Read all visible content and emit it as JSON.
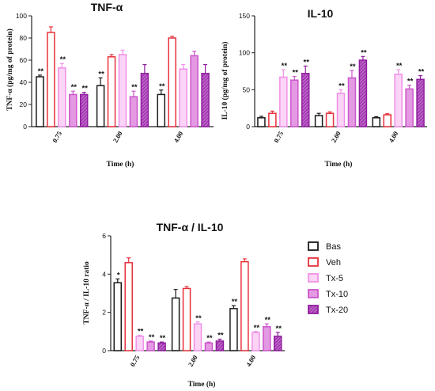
{
  "series_styles": [
    {
      "name": "Bas",
      "stroke": "#1a1a1a",
      "fill": "#ffffff",
      "hatch": false
    },
    {
      "name": "Veh",
      "stroke": "#e8303a",
      "fill": "#ffffff",
      "hatch": false
    },
    {
      "name": "Tx-5",
      "stroke": "#f090e8",
      "fill": "#fcd4f6",
      "hatch": false
    },
    {
      "name": "Tx-10",
      "stroke": "#cc55cc",
      "fill": "#e49ae2",
      "hatch": false
    },
    {
      "name": "Tx-20",
      "stroke": "#8f1d9e",
      "fill": "#c060cc",
      "hatch": true
    }
  ],
  "chart_data": [
    {
      "type": "bar",
      "title": "TNF-α",
      "xlabel": "Time (h)",
      "ylabel": "TNF-α (pg/mg of protein)",
      "categories": [
        "0.75",
        "2.00",
        "4.00"
      ],
      "ylim": [
        0,
        100
      ],
      "yticks": [
        0,
        20,
        40,
        60,
        80,
        100
      ],
      "series": [
        {
          "name": "Bas",
          "values": [
            45,
            37,
            29
          ],
          "errors": [
            1.5,
            7,
            4
          ],
          "sig": [
            "**",
            "**",
            "**"
          ]
        },
        {
          "name": "Veh",
          "values": [
            85,
            63,
            80
          ],
          "errors": [
            5,
            2,
            1.5
          ],
          "sig": [
            "",
            "",
            ""
          ]
        },
        {
          "name": "Tx-5",
          "values": [
            53,
            65,
            52
          ],
          "errors": [
            4,
            4,
            4
          ],
          "sig": [
            "**",
            "",
            ""
          ]
        },
        {
          "name": "Tx-10",
          "values": [
            29,
            27,
            64
          ],
          "errors": [
            3,
            5,
            4
          ],
          "sig": [
            "**",
            "**",
            ""
          ]
        },
        {
          "name": "Tx-20",
          "values": [
            29,
            48,
            48
          ],
          "errors": [
            2,
            8,
            8
          ],
          "sig": [
            "**",
            "",
            ""
          ]
        }
      ]
    },
    {
      "type": "bar",
      "title": "IL-10",
      "xlabel": "Time (h)",
      "ylabel": "IL-10 (pg/mg of protein)",
      "categories": [
        "0.75",
        "2.00",
        "4.00"
      ],
      "ylim": [
        0,
        150
      ],
      "yticks": [
        0,
        50,
        100,
        150
      ],
      "series": [
        {
          "name": "Bas",
          "values": [
            12,
            15,
            12
          ],
          "errors": [
            2,
            3,
            1.5
          ],
          "sig": [
            "",
            "",
            ""
          ]
        },
        {
          "name": "Veh",
          "values": [
            18,
            18,
            16
          ],
          "errors": [
            3,
            2,
            1.5
          ],
          "sig": [
            "",
            "",
            ""
          ]
        },
        {
          "name": "Tx-5",
          "values": [
            67,
            45,
            71
          ],
          "errors": [
            10,
            5,
            6
          ],
          "sig": [
            "**",
            "**",
            "**"
          ]
        },
        {
          "name": "Tx-10",
          "values": [
            63,
            66,
            51
          ],
          "errors": [
            5,
            10,
            5
          ],
          "sig": [
            "**",
            "**",
            "**"
          ]
        },
        {
          "name": "Tx-20",
          "values": [
            72,
            90,
            64
          ],
          "errors": [
            10,
            5,
            5
          ],
          "sig": [
            "**",
            "**",
            "**"
          ]
        }
      ]
    },
    {
      "type": "bar",
      "title": "TNF-α / IL-10",
      "xlabel": "Time (h)",
      "ylabel": "TNF-α / IL-10 ratio",
      "categories": [
        "0.75",
        "2.00",
        "4.00"
      ],
      "ylim": [
        0,
        6
      ],
      "yticks": [
        0,
        2,
        4,
        6
      ],
      "series": [
        {
          "name": "Bas",
          "values": [
            3.55,
            2.75,
            2.2
          ],
          "errors": [
            0.2,
            0.45,
            0.15
          ],
          "sig": [
            "*",
            "",
            "**"
          ]
        },
        {
          "name": "Veh",
          "values": [
            4.6,
            3.25,
            4.65
          ],
          "errors": [
            0.25,
            0.1,
            0.15
          ],
          "sig": [
            "",
            "",
            ""
          ]
        },
        {
          "name": "Tx-5",
          "values": [
            0.75,
            1.4,
            0.95
          ],
          "errors": [
            0.05,
            0.1,
            0.05
          ],
          "sig": [
            "**",
            "**",
            "**"
          ]
        },
        {
          "name": "Tx-10",
          "values": [
            0.45,
            0.4,
            1.25
          ],
          "errors": [
            0.05,
            0.05,
            0.15
          ],
          "sig": [
            "**",
            "**",
            "**"
          ]
        },
        {
          "name": "Tx-20",
          "values": [
            0.4,
            0.5,
            0.75
          ],
          "errors": [
            0.05,
            0.1,
            0.2
          ],
          "sig": [
            "**",
            "**",
            "**"
          ]
        }
      ]
    }
  ],
  "legend": {
    "items": [
      {
        "label": "Bas"
      },
      {
        "label": "Veh"
      },
      {
        "label": "Tx-5"
      },
      {
        "label": "Tx-10"
      },
      {
        "label": "Tx-20"
      }
    ]
  }
}
